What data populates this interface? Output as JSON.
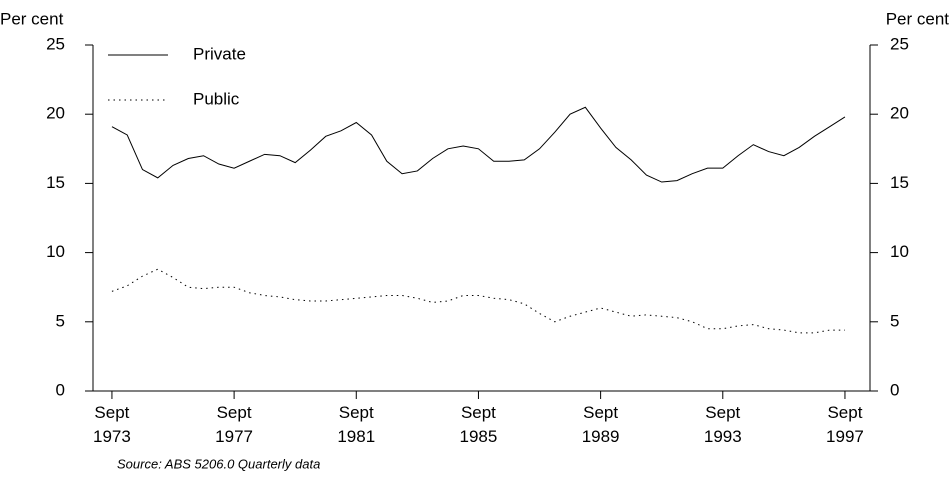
{
  "chart_data": {
    "type": "line",
    "y_label": "Per cent",
    "y2_label": "Per cent",
    "note": "Source: ABS 5206.0 Quarterly data",
    "x": [
      1973.75,
      1974.25,
      1974.75,
      1975.25,
      1975.75,
      1976.25,
      1976.75,
      1977.25,
      1977.75,
      1978.25,
      1978.75,
      1979.25,
      1979.75,
      1980.25,
      1980.75,
      1981.25,
      1981.75,
      1982.25,
      1982.75,
      1983.25,
      1983.75,
      1984.25,
      1984.75,
      1985.25,
      1985.75,
      1986.25,
      1986.75,
      1987.25,
      1987.75,
      1988.25,
      1988.75,
      1989.25,
      1989.75,
      1990.25,
      1990.75,
      1991.25,
      1991.75,
      1992.25,
      1992.75,
      1993.25,
      1993.75,
      1994.25,
      1994.75,
      1995.25,
      1995.75,
      1996.25,
      1996.75,
      1997.25,
      1997.75
    ],
    "series": [
      {
        "name": "Private",
        "color": "#000000",
        "line_style": "solid",
        "values": [
          19.1,
          18.5,
          16.0,
          15.4,
          16.3,
          16.8,
          17.0,
          16.4,
          16.1,
          16.6,
          17.1,
          17.0,
          16.5,
          17.4,
          18.4,
          18.8,
          19.4,
          18.5,
          16.6,
          15.7,
          15.9,
          16.8,
          17.5,
          17.7,
          17.5,
          16.6,
          16.6,
          16.7,
          17.5,
          18.7,
          20.0,
          20.5,
          19.0,
          17.6,
          16.7,
          15.6,
          15.1,
          15.2,
          15.7,
          16.1,
          16.1,
          17.0,
          17.8,
          17.3,
          17.0,
          17.6,
          18.4,
          19.1,
          19.8
        ]
      },
      {
        "name": "Public",
        "color": "#000000",
        "line_style": "dotted",
        "values": [
          7.2,
          7.6,
          8.3,
          8.8,
          8.2,
          7.5,
          7.4,
          7.5,
          7.5,
          7.1,
          6.9,
          6.8,
          6.6,
          6.5,
          6.5,
          6.6,
          6.7,
          6.8,
          6.9,
          6.9,
          6.7,
          6.4,
          6.5,
          6.9,
          6.9,
          6.7,
          6.6,
          6.3,
          5.6,
          5.0,
          5.4,
          5.7,
          6.0,
          5.7,
          5.4,
          5.5,
          5.4,
          5.3,
          5.0,
          4.5,
          4.5,
          4.7,
          4.8,
          4.5,
          4.4,
          4.2,
          4.2,
          4.4,
          4.4
        ]
      }
    ],
    "xlim": [
      1973.13,
      1998.57
    ],
    "xticks": [
      {
        "value": 1973.75,
        "label": "Sept 1973"
      },
      {
        "value": 1977.75,
        "label": "Sept 1977"
      },
      {
        "value": 1981.75,
        "label": "Sept 1981"
      },
      {
        "value": 1985.75,
        "label": "Sept 1985"
      },
      {
        "value": 1989.75,
        "label": "Sept 1989"
      },
      {
        "value": 1993.75,
        "label": "Sept 1993"
      },
      {
        "value": 1997.75,
        "label": "Sept 1997"
      }
    ],
    "ylim": [
      0,
      25
    ],
    "yticks": [
      0,
      5,
      10,
      15,
      20,
      25
    ],
    "y2lim": [
      0,
      25
    ],
    "y2ticks": [
      0,
      5,
      10,
      15,
      20,
      25
    ],
    "grid": false,
    "legend": "upper left"
  }
}
